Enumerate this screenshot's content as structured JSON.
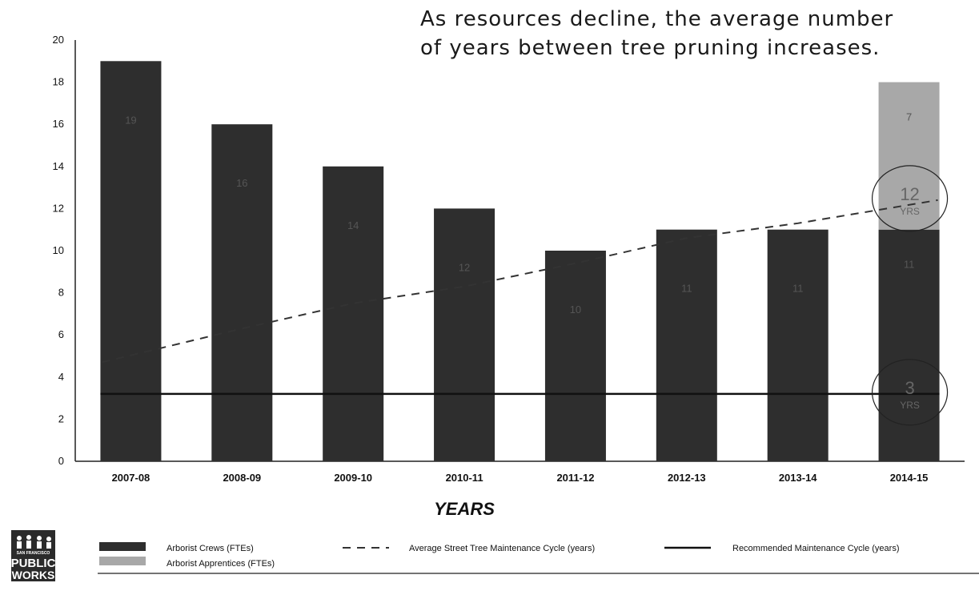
{
  "chart_data": {
    "type": "bar",
    "title_lines": [
      "As resources decline, the average number",
      "of years between tree pruning increases."
    ],
    "xlabel": "YEARS",
    "ylabel": "",
    "ylim": [
      0,
      20
    ],
    "yticks": [
      "0",
      "2",
      "4",
      "6",
      "8",
      "10",
      "12",
      "14",
      "16",
      "18",
      "20"
    ],
    "grid": false,
    "categories": [
      "2007-08",
      "2008-09",
      "2009-10",
      "2010-11",
      "2011-12",
      "2012-13",
      "2013-14",
      "2014-15"
    ],
    "stacked_bars": [
      {
        "name": "Arborist Crews (FTEs)",
        "values": [
          19,
          16,
          14,
          12,
          10,
          11,
          11,
          11
        ],
        "labels": [
          "19",
          "16",
          "14",
          "12",
          "10",
          "11",
          "11",
          "11"
        ],
        "color": "#2e2e2e"
      },
      {
        "name": "Arborist Apprentices (FTEs)",
        "values": [
          0,
          0,
          0,
          0,
          0,
          0,
          0,
          7
        ],
        "labels": [
          "",
          "",
          "",
          "",
          "",
          "",
          "",
          "7"
        ],
        "color": "#a8a8a8"
      }
    ],
    "lines": [
      {
        "name": "Average Street Tree Maintenance Cycle (years)",
        "style": "dashed",
        "values": [
          4.7,
          6.3,
          7.5,
          8.3,
          9.4,
          10.6,
          11.3,
          12.4
        ]
      },
      {
        "name": "Recommended Maintenance Cycle (years)",
        "style": "solid",
        "values": [
          3.2,
          3.2,
          3.2,
          3.2,
          3.2,
          3.2,
          3.2,
          3.2
        ]
      }
    ],
    "annotations": [
      {
        "number": "12",
        "unit": "YRS",
        "at_category": "2014-15",
        "at_value": 12.4
      },
      {
        "number": "3",
        "unit": "YRS",
        "at_category": "2014-15",
        "at_value": 3.2
      }
    ],
    "legend_position": "bottom"
  },
  "logo": {
    "line1": "SAN FRANCISCO",
    "line2": "PUBLIC",
    "line3": "WORKS"
  }
}
